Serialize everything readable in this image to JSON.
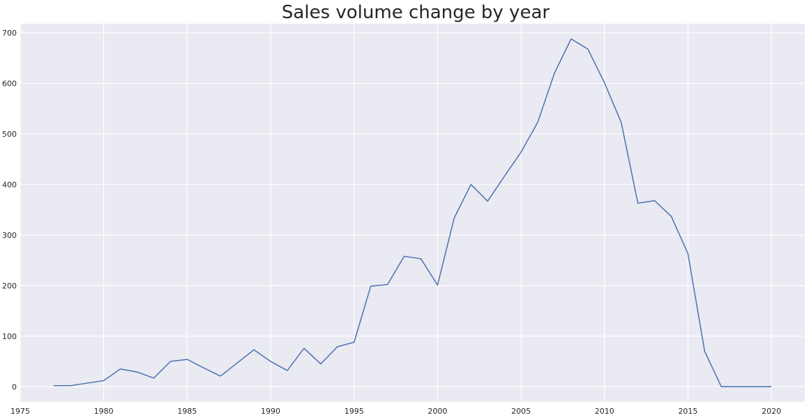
{
  "chart_data": {
    "type": "line",
    "title": "Sales volume change by year",
    "xlabel": "",
    "ylabel": "",
    "xlim": [
      1975,
      2022
    ],
    "ylim": [
      -30,
      718
    ],
    "x_ticks": [
      1975,
      1980,
      1985,
      1990,
      1995,
      2000,
      2005,
      2010,
      2015,
      2020
    ],
    "y_ticks": [
      0,
      100,
      200,
      300,
      400,
      500,
      600,
      700
    ],
    "grid": true,
    "legend": "none",
    "colors": {
      "line": "#4c72b0",
      "plot_bg": "#eaeaf2",
      "grid": "#ffffff",
      "text": "#262626"
    },
    "series": [
      {
        "x": [
          1977,
          1978,
          1979,
          1980,
          1981,
          1982,
          1983,
          1984,
          1985,
          1986,
          1987,
          1988,
          1989,
          1990,
          1991,
          1992,
          1993,
          1994,
          1995,
          1996,
          1997,
          1998,
          1999,
          2000,
          2001,
          2002,
          2003,
          2004,
          2005,
          2006,
          2007,
          2008,
          2009,
          2010,
          2011,
          2012,
          2013,
          2014,
          2015,
          2016,
          2017,
          2018,
          2019,
          2020
        ],
        "values": [
          2,
          2,
          7,
          12,
          35,
          29,
          17,
          50,
          54,
          37,
          21,
          47,
          73,
          50,
          32,
          76,
          45,
          79,
          88,
          199,
          202,
          258,
          253,
          201,
          334,
          400,
          367,
          416,
          464,
          523,
          620,
          688,
          668,
          601,
          523,
          363,
          368,
          337,
          263,
          70,
          0,
          0,
          0,
          0
        ]
      }
    ]
  }
}
